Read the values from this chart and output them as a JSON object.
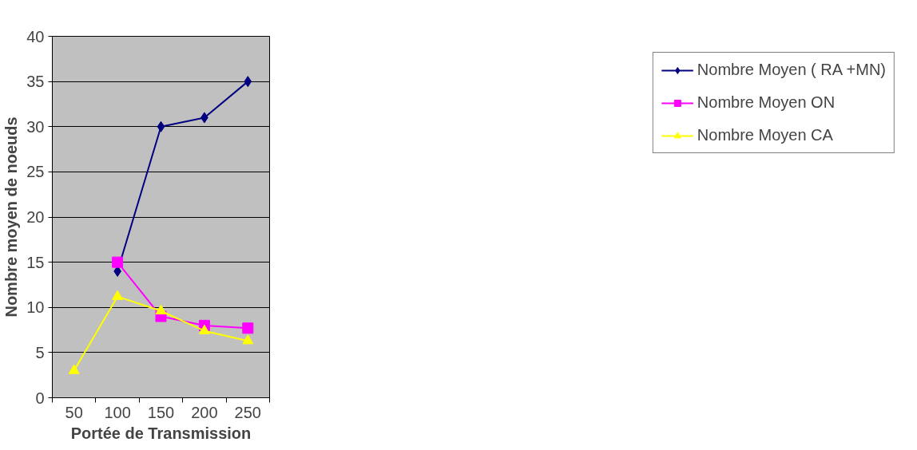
{
  "chart_data": {
    "type": "line",
    "xlabel": "Portée de Transmission",
    "ylabel": "Nombre moyen de noeuds",
    "categories": [
      "50",
      "100",
      "150",
      "200",
      "250"
    ],
    "series": [
      {
        "name": "Nombre Moyen ( RA +MN)",
        "color": "#000080",
        "marker": "diamond",
        "values": [
          null,
          14,
          30,
          31,
          35
        ]
      },
      {
        "name": "Nombre Moyen ON",
        "color": "#ff00ff",
        "marker": "square",
        "values": [
          null,
          15,
          9,
          8,
          7.7
        ]
      },
      {
        "name": "Nombre Moyen CA",
        "color": "#ffff00",
        "marker": "triangle",
        "values": [
          3,
          11.2,
          9.6,
          7.4,
          6.3
        ]
      }
    ],
    "ylim": [
      0,
      40
    ],
    "yticks": [
      0,
      5,
      10,
      15,
      20,
      25,
      30,
      35,
      40
    ],
    "grid": "y",
    "legend": "right"
  }
}
